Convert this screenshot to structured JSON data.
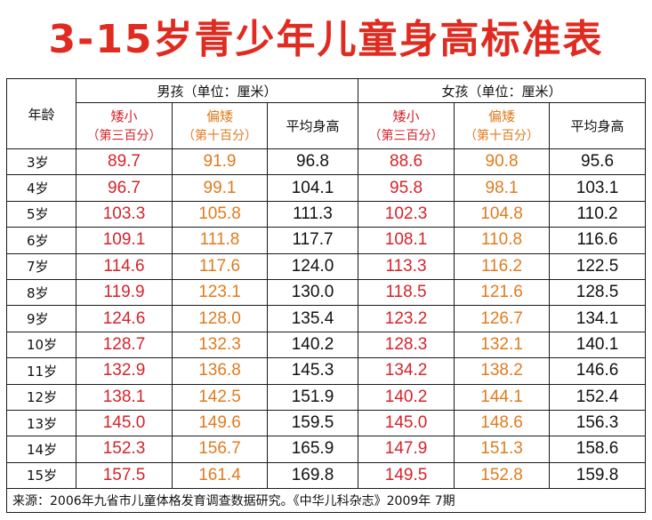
{
  "title": "3-15岁青少年儿童身高标准表",
  "header": {
    "age_label": "年龄",
    "boys_label": "男孩（单位：厘米）",
    "girls_label": "女孩（单位：厘米）",
    "short_label": "矮小",
    "short_sub": "（第三百分）",
    "lower_label": "偏矮",
    "lower_sub": "（第十百分）",
    "avg_label": "平均身高"
  },
  "colors": {
    "title": "#e02b20",
    "short": "#d4242a",
    "lower": "#e07b1e",
    "avg": "#111111"
  },
  "rows": [
    {
      "age": "3岁",
      "boys": [
        "89.7",
        "91.9",
        "96.8"
      ],
      "girls": [
        "88.6",
        "90.8",
        "95.6"
      ]
    },
    {
      "age": "4岁",
      "boys": [
        "96.7",
        "99.1",
        "104.1"
      ],
      "girls": [
        "95.8",
        "98.1",
        "103.1"
      ]
    },
    {
      "age": "5岁",
      "boys": [
        "103.3",
        "105.8",
        "111.3"
      ],
      "girls": [
        "102.3",
        "104.8",
        "110.2"
      ]
    },
    {
      "age": "6岁",
      "boys": [
        "109.1",
        "111.8",
        "117.7"
      ],
      "girls": [
        "108.1",
        "110.8",
        "116.6"
      ]
    },
    {
      "age": "7岁",
      "boys": [
        "114.6",
        "117.6",
        "124.0"
      ],
      "girls": [
        "113.3",
        "116.2",
        "122.5"
      ]
    },
    {
      "age": "8岁",
      "boys": [
        "119.9",
        "123.1",
        "130.0"
      ],
      "girls": [
        "118.5",
        "121.6",
        "128.5"
      ]
    },
    {
      "age": "9岁",
      "boys": [
        "124.6",
        "128.0",
        "135.4"
      ],
      "girls": [
        "123.2",
        "126.7",
        "134.1"
      ]
    },
    {
      "age": "10岁",
      "boys": [
        "128.7",
        "132.3",
        "140.2"
      ],
      "girls": [
        "128.3",
        "132.1",
        "140.1"
      ]
    },
    {
      "age": "11岁",
      "boys": [
        "132.9",
        "136.8",
        "145.3"
      ],
      "girls": [
        "134.2",
        "138.2",
        "146.6"
      ]
    },
    {
      "age": "12岁",
      "boys": [
        "138.1",
        "142.5",
        "151.9"
      ],
      "girls": [
        "140.2",
        "144.1",
        "152.4"
      ]
    },
    {
      "age": "13岁",
      "boys": [
        "145.0",
        "149.6",
        "159.5"
      ],
      "girls": [
        "145.0",
        "148.6",
        "156.3"
      ]
    },
    {
      "age": "14岁",
      "boys": [
        "152.3",
        "156.7",
        "165.9"
      ],
      "girls": [
        "147.9",
        "151.3",
        "158.6"
      ]
    },
    {
      "age": "15岁",
      "boys": [
        "157.5",
        "161.4",
        "169.8"
      ],
      "girls": [
        "149.5",
        "152.8",
        "159.8"
      ]
    }
  ],
  "source": "来源：2006年九省市儿童体格发育调查数据研究。《中华儿科杂志》2009年 7期"
}
